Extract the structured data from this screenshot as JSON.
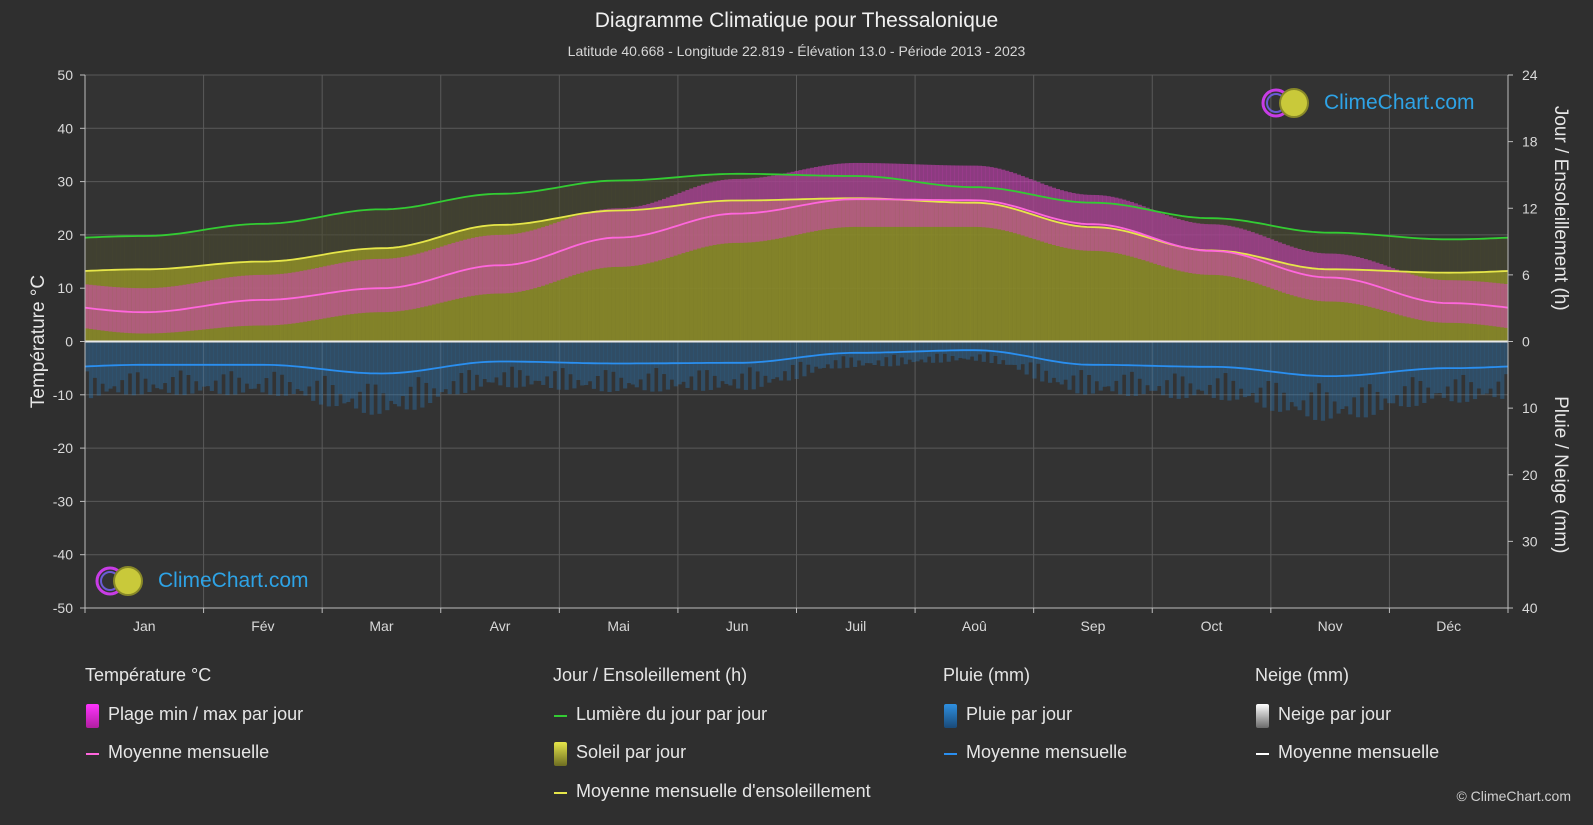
{
  "header": {
    "title": "Diagramme Climatique pour Thessalonique",
    "subtitle": "Latitude 40.668 - Longitude 22.819 - Élévation 13.0 - Période 2013 - 2023"
  },
  "branding": {
    "logo_text": "ClimeChart.com",
    "copyright": "© ClimeChart.com"
  },
  "colors": {
    "background": "#2f2f2f",
    "daylight": "#33cc33",
    "sunshine_fill": "#8e8e28",
    "sunshine_line": "#e6e64a",
    "temp_line": "#ff66dd",
    "temp_range": "#d63fc0",
    "rain": "#2a7fc4",
    "grid": "#5a5a5a"
  },
  "chart_data": {
    "type": "line",
    "title": "Diagramme Climatique pour Thessalonique",
    "categories": [
      "Jan",
      "Fév",
      "Mar",
      "Avr",
      "Mai",
      "Jun",
      "Juil",
      "Aoû",
      "Sep",
      "Oct",
      "Nov",
      "Déc"
    ],
    "left_axis": {
      "label": "Température °C",
      "range": [
        -50,
        50
      ],
      "ticks": [
        50,
        40,
        30,
        20,
        10,
        0,
        -10,
        -20,
        -30,
        -40,
        -50
      ]
    },
    "right_axis_top": {
      "label": "Jour / Ensoleillement (h)",
      "range": [
        0,
        24
      ],
      "ticks": [
        24,
        18,
        12,
        6,
        0
      ]
    },
    "right_axis_bottom": {
      "label": "Pluie / Neige (mm)",
      "range": [
        0,
        40
      ],
      "ticks": [
        0,
        10,
        20,
        30,
        40
      ]
    },
    "grid": true,
    "series": [
      {
        "name": "Lumière du jour par jour",
        "unit": "h",
        "values": [
          9.5,
          10.6,
          11.9,
          13.3,
          14.5,
          15.1,
          14.9,
          13.9,
          12.5,
          11.1,
          9.8,
          9.2
        ]
      },
      {
        "name": "Moyenne mensuelle d'ensoleillement",
        "unit": "h",
        "values": [
          6.5,
          7.2,
          8.4,
          10.5,
          11.8,
          12.7,
          12.9,
          12.5,
          10.3,
          8.2,
          6.5,
          6.2
        ]
      },
      {
        "name": "Moyenne mensuelle",
        "group": "Température °C",
        "unit": "°C",
        "values": [
          5.5,
          7.8,
          10.0,
          14.3,
          19.5,
          24.0,
          26.7,
          26.5,
          22.0,
          17.0,
          12.0,
          7.2
        ]
      },
      {
        "name": "Plage min / max par jour",
        "group": "Température °C",
        "unit": "°C",
        "min": [
          1.5,
          3.0,
          5.5,
          9.0,
          14.0,
          18.5,
          21.5,
          21.5,
          17.0,
          12.5,
          7.5,
          3.5
        ],
        "max": [
          10.0,
          12.5,
          15.5,
          20.0,
          25.0,
          30.5,
          33.5,
          33.0,
          27.5,
          22.0,
          16.5,
          11.5
        ]
      },
      {
        "name": "Moyenne mensuelle",
        "group": "Pluie (mm)",
        "unit": "mm",
        "values": [
          3.5,
          3.5,
          4.8,
          3.0,
          3.3,
          3.2,
          1.7,
          1.3,
          3.5,
          3.8,
          5.2,
          4.0
        ]
      },
      {
        "name": "Moyenne mensuelle",
        "group": "Neige (mm)",
        "unit": "mm",
        "values": [
          0,
          0,
          0,
          0,
          0,
          0,
          0,
          0,
          0,
          0,
          0,
          0
        ]
      }
    ]
  },
  "legend": {
    "groups": [
      {
        "title": "Température °C",
        "items": [
          {
            "label": "Plage min / max par jour"
          },
          {
            "label": "Moyenne mensuelle"
          }
        ]
      },
      {
        "title": "Jour / Ensoleillement (h)",
        "items": [
          {
            "label": "Lumière du jour par jour"
          },
          {
            "label": "Soleil par jour"
          },
          {
            "label": "Moyenne mensuelle d'ensoleillement"
          }
        ]
      },
      {
        "title": "Pluie (mm)",
        "items": [
          {
            "label": "Pluie par jour"
          },
          {
            "label": "Moyenne mensuelle"
          }
        ]
      },
      {
        "title": "Neige (mm)",
        "items": [
          {
            "label": "Neige par jour"
          },
          {
            "label": "Moyenne mensuelle"
          }
        ]
      }
    ]
  }
}
